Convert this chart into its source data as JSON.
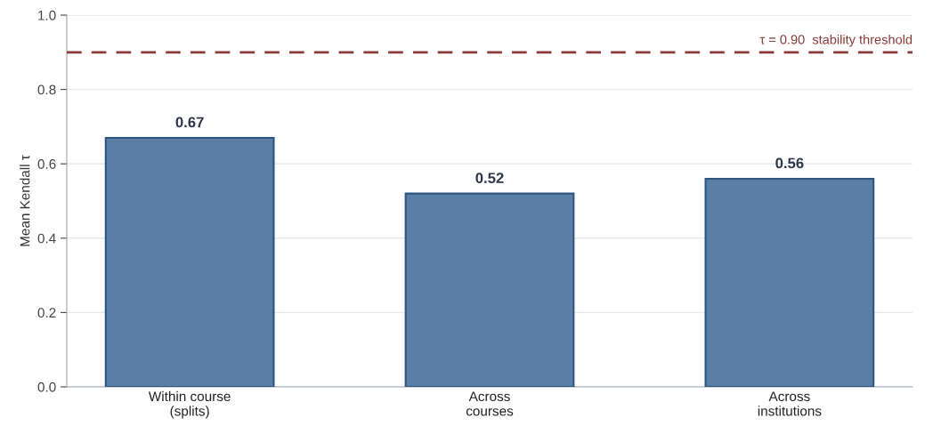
{
  "chart_data": {
    "type": "bar",
    "ylabel": "Mean Kendall τ",
    "categories": [
      "Within course\n(splits)",
      "Across\ncourses",
      "Across\ninstitutions"
    ],
    "values": [
      0.67,
      0.52,
      0.56
    ],
    "color": "#5b7ea6",
    "data_labels": true,
    "ylim": [
      0.0,
      1.0
    ],
    "yticks": [
      {
        "value": 0.0,
        "label": "0.0"
      },
      {
        "value": 0.2,
        "label": "0.2"
      },
      {
        "value": 0.4,
        "label": "0.4"
      },
      {
        "value": 0.6,
        "label": "0.6"
      },
      {
        "value": 0.8,
        "label": "0.8"
      },
      {
        "value": 1.0,
        "label": "1.0"
      }
    ],
    "grid": "y",
    "ref_lines": [
      {
        "axis": "y",
        "value": 0.9,
        "label": "τ = 0.90  stability threshold",
        "color": "#8b3a3a",
        "line_style": "dashed"
      }
    ]
  }
}
